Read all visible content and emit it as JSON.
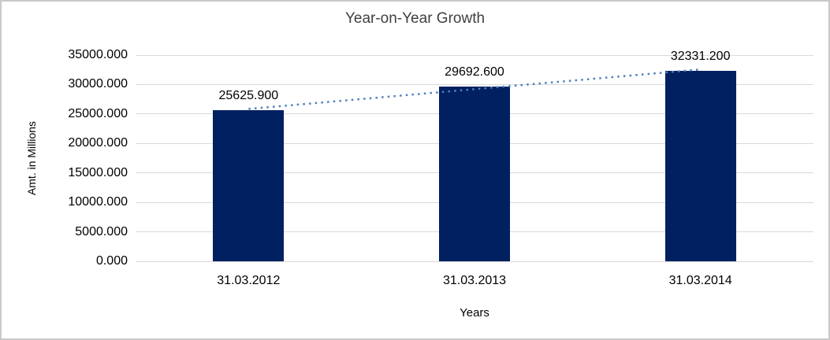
{
  "chart_data": {
    "type": "bar",
    "title": "Year-on-Year Growth",
    "xlabel": "Years",
    "ylabel": "Amt. in Millions",
    "categories": [
      "31.03.2012",
      "31.03.2013",
      "31.03.2014"
    ],
    "values": [
      25625.9,
      29692.6,
      32331.2
    ],
    "data_labels": [
      "25625.900",
      "29692.600",
      "32331.200"
    ],
    "y_ticks": [
      "0.000",
      "5000.000",
      "10000.000",
      "15000.000",
      "20000.000",
      "25000.000",
      "30000.000",
      "35000.000"
    ],
    "y_tick_values": [
      0,
      5000,
      10000,
      15000,
      20000,
      25000,
      30000,
      35000
    ],
    "ylim": [
      0,
      35000
    ],
    "grid": true,
    "legend": "none",
    "trendline": {
      "type": "linear",
      "style": "dotted"
    },
    "colors": {
      "bar": "#002060",
      "trendline": "#4F81BD",
      "gridline": "#D9D9D9",
      "title_text": "#404040",
      "axis_text": "#000000",
      "frame_border": "#C9C9C9",
      "background": "#FFFFFF"
    }
  }
}
